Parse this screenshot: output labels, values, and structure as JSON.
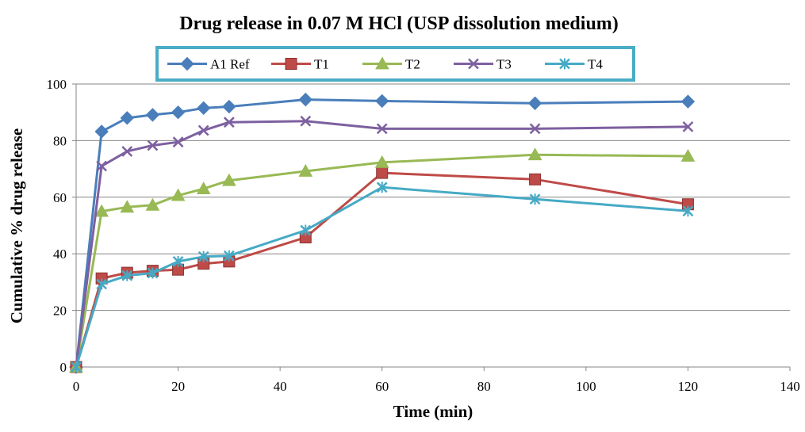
{
  "chart_data": {
    "type": "line",
    "title": "Drug release in 0.07 M HCl (USP dissolution medium)",
    "xlabel": "Time (min)",
    "ylabel": "Cumulative % drug release",
    "xlim": [
      0,
      140
    ],
    "ylim": [
      0,
      100
    ],
    "xticks": [
      0,
      20,
      40,
      60,
      80,
      100,
      120,
      140
    ],
    "yticks": [
      0,
      20,
      40,
      60,
      80,
      100
    ],
    "grid": "horizontal",
    "legend_position": "top",
    "x": [
      0,
      5,
      10,
      15,
      20,
      25,
      30,
      45,
      60,
      90,
      120
    ],
    "series": [
      {
        "name": "A1 Ref",
        "color": "#4a7ebb",
        "marker": "diamond",
        "values": [
          0,
          83.2,
          88,
          89.1,
          90,
          91.5,
          92,
          94.5,
          94,
          93.2,
          93.8
        ]
      },
      {
        "name": "T1",
        "color": "#be4b48",
        "marker": "square",
        "values": [
          0,
          31.3,
          33.3,
          34,
          34.4,
          36.5,
          37.3,
          45.8,
          68.6,
          66.3,
          57.5
        ]
      },
      {
        "name": "T2",
        "color": "#98b954",
        "marker": "triangle",
        "values": [
          0,
          55,
          56.5,
          57.2,
          60.6,
          63,
          65.9,
          69.2,
          72.3,
          75,
          74.5
        ]
      },
      {
        "name": "T3",
        "color": "#7d60a0",
        "marker": "x",
        "values": [
          0,
          71,
          76.2,
          78.3,
          79.5,
          83.6,
          86.5,
          86.9,
          84.2,
          84.2,
          84.9
        ]
      },
      {
        "name": "T4",
        "color": "#46aac5",
        "marker": "star",
        "values": [
          0,
          29.3,
          32.3,
          33.2,
          37.3,
          39,
          39.3,
          48.3,
          63.5,
          59.3,
          55.1
        ]
      }
    ]
  }
}
